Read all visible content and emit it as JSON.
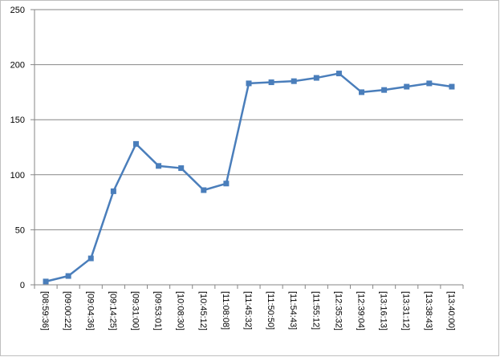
{
  "chart_data": {
    "type": "line",
    "categories": [
      "[08:59:36]",
      "[09:00:22]",
      "[09:04:36]",
      "[09:14:25]",
      "[09:31:00]",
      "[09:53:01]",
      "[10:08:30]",
      "[10:45:12]",
      "[11:08:08]",
      "[11:45:32]",
      "[11:50:50]",
      "[11:54:43]",
      "[11:55:12]",
      "[12:35:32]",
      "[12:39:04]",
      "[13:16:13]",
      "[13:31:12]",
      "[13:38:43]",
      "[13:40:00]"
    ],
    "values": [
      3,
      8,
      24,
      85,
      128,
      108,
      106,
      86,
      92,
      183,
      184,
      185,
      188,
      192,
      175,
      177,
      180,
      183,
      180
    ],
    "color": "#4a7ebb",
    "ylim": [
      0,
      250
    ],
    "yticks": [
      0,
      50,
      100,
      150,
      200,
      250
    ],
    "grid": true
  }
}
